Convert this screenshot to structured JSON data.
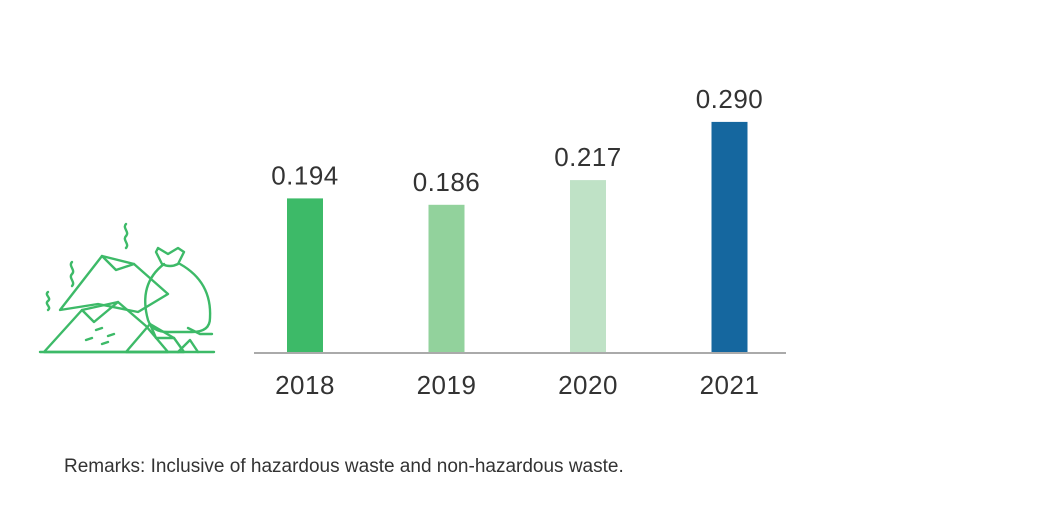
{
  "chart_data": {
    "type": "bar",
    "categories": [
      "2018",
      "2019",
      "2020",
      "2021"
    ],
    "values": [
      0.194,
      0.186,
      0.217,
      0.29
    ],
    "value_labels": [
      "0.194",
      "0.186",
      "0.217",
      "0.290"
    ],
    "colors": [
      "#3dba68",
      "#92d29c",
      "#bfe2c6",
      "#15679f"
    ],
    "title": "",
    "xlabel": "",
    "ylabel": "",
    "ylim": [
      0,
      0.33
    ],
    "grid": false,
    "legend": "none"
  },
  "icon": {
    "name": "waste-pile-icon",
    "color": "#3dba68"
  },
  "remarks": "Remarks: Inclusive of hazardous waste and non-hazardous waste.",
  "axis_color": "#aaaaaa"
}
